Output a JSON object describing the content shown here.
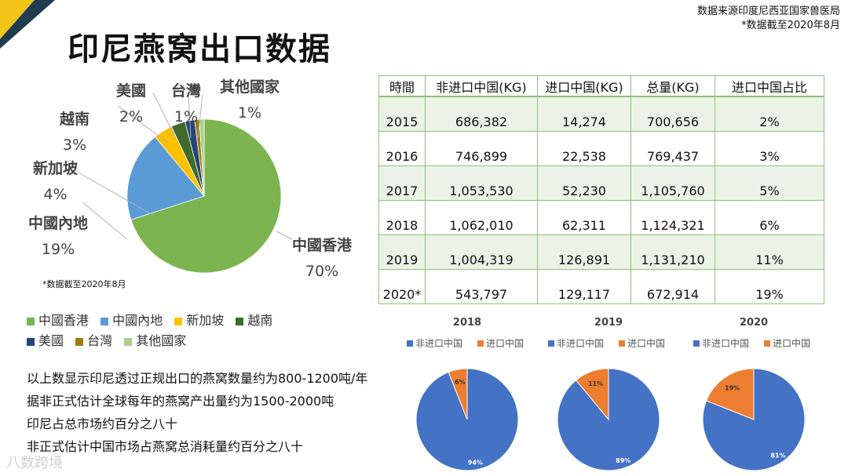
{
  "header": {
    "title": "印尼燕窝出口数据",
    "source_line1": "数据来源印度尼西亚国家兽医局",
    "source_line2": "*数据截至2020年8月"
  },
  "colors": {
    "hongkong": "#7cb550",
    "mainland": "#5b9bd5",
    "singapore": "#ffc000",
    "vietnam": "#3f6b2c",
    "usa": "#264478",
    "taiwan": "#9e7c0c",
    "other": "#a9d18e",
    "non_china": "#4472c4",
    "china": "#ed7d31",
    "table_border": "#8fc17a"
  },
  "chart_data": [
    {
      "type": "pie",
      "title": "",
      "note": "*数据截至2020年8月",
      "labels": [
        "中國香港",
        "中國內地",
        "新加坡",
        "越南",
        "美國",
        "台灣",
        "其他國家"
      ],
      "values": [
        70,
        19,
        4,
        3,
        2,
        1,
        1
      ],
      "value_labels": [
        "70%",
        "19%",
        "4%",
        "3%",
        "2%",
        "1%",
        "1%"
      ],
      "legend": [
        "中國香港",
        "中國內地",
        "新加坡",
        "越南",
        "美國",
        "台灣",
        "其他國家"
      ],
      "legend_position": "bottom"
    },
    {
      "type": "table",
      "columns": [
        "時間",
        "非进口中国(KG)",
        "进口中国(KG)",
        "总量(KG)",
        "进口中国占比"
      ],
      "rows": [
        [
          "2015",
          "686,382",
          "14,274",
          "700,656",
          "2%"
        ],
        [
          "2016",
          "746,899",
          "22,538",
          "769,437",
          "3%"
        ],
        [
          "2017",
          "1,053,530",
          "52,230",
          "1,105,760",
          "5%"
        ],
        [
          "2018",
          "1,062,010",
          "62,311",
          "1,124,321",
          "6%"
        ],
        [
          "2019",
          "1,004,319",
          "126,891",
          "1,131,210",
          "11%"
        ],
        [
          "2020*",
          "543,797",
          "129,117",
          "672,914",
          "19%"
        ]
      ]
    },
    {
      "type": "pie",
      "title": "2018",
      "labels": [
        "非进口中国",
        "进口中国"
      ],
      "values": [
        94,
        6
      ],
      "value_labels": [
        "94%",
        "6%"
      ],
      "legend_position": "top"
    },
    {
      "type": "pie",
      "title": "2019",
      "labels": [
        "非进口中国",
        "进口中国"
      ],
      "values": [
        89,
        11
      ],
      "value_labels": [
        "89%",
        "11%"
      ],
      "legend_position": "top"
    },
    {
      "type": "pie",
      "title": "2020",
      "labels": [
        "非进口中国",
        "进口中国"
      ],
      "values": [
        81,
        19
      ],
      "value_labels": [
        "81%",
        "19%"
      ],
      "legend_position": "top"
    }
  ],
  "notes": [
    "以上数显示印尼透过正规出口的燕窝数量约为800-1200吨/年",
    "据非正式估计全球每年的燕窝产出量约为1500-2000吨",
    "印尼占总市场约百分之八十",
    "非正式估计中国市场占燕窝总消耗量约百分之八十"
  ],
  "watermark": "八数跨境"
}
